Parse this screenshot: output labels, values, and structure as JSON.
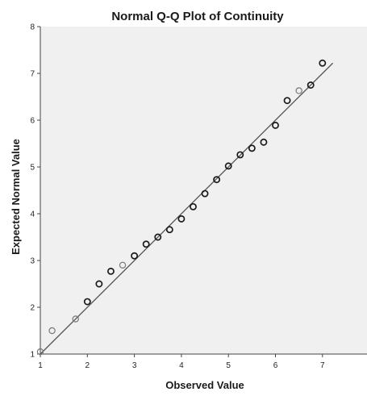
{
  "chart_data": {
    "type": "scatter",
    "title": "Normal Q-Q Plot of Continuity",
    "xlabel": "Observed Value",
    "ylabel": "Expected Normal Value",
    "xlim": [
      1,
      8
    ],
    "ylim": [
      1,
      8
    ],
    "x_ticks": [
      1,
      2,
      3,
      4,
      5,
      6,
      7
    ],
    "y_ticks": [
      1,
      2,
      3,
      4,
      5,
      6,
      7,
      8
    ],
    "grid": false,
    "legend": "none",
    "plot_background": "#f0f0f0",
    "axis_color": "#444444",
    "marker_color": "#1a1a1a",
    "light_marker_color": "#777777",
    "line_color": "#555555",
    "reference_line": {
      "x": [
        1,
        7.22
      ],
      "y": [
        1,
        7.22
      ]
    },
    "series": [
      {
        "points": [
          {
            "x": 1.0,
            "y": 1.05,
            "light": true
          },
          {
            "x": 1.25,
            "y": 1.5,
            "light": true
          },
          {
            "x": 1.75,
            "y": 1.75,
            "light": true
          },
          {
            "x": 2.0,
            "y": 2.12
          },
          {
            "x": 2.25,
            "y": 2.5
          },
          {
            "x": 2.5,
            "y": 2.77
          },
          {
            "x": 2.75,
            "y": 2.9,
            "light": true
          },
          {
            "x": 3.0,
            "y": 3.1
          },
          {
            "x": 3.25,
            "y": 3.35
          },
          {
            "x": 3.5,
            "y": 3.5
          },
          {
            "x": 3.75,
            "y": 3.66
          },
          {
            "x": 4.0,
            "y": 3.89
          },
          {
            "x": 4.25,
            "y": 4.15
          },
          {
            "x": 4.5,
            "y": 4.43
          },
          {
            "x": 4.75,
            "y": 4.73
          },
          {
            "x": 5.0,
            "y": 5.02
          },
          {
            "x": 5.25,
            "y": 5.26
          },
          {
            "x": 5.5,
            "y": 5.4
          },
          {
            "x": 5.75,
            "y": 5.53
          },
          {
            "x": 6.0,
            "y": 5.89
          },
          {
            "x": 6.25,
            "y": 6.42
          },
          {
            "x": 6.5,
            "y": 6.63,
            "light": true
          },
          {
            "x": 6.75,
            "y": 6.75
          },
          {
            "x": 7.0,
            "y": 7.22
          }
        ]
      }
    ]
  }
}
